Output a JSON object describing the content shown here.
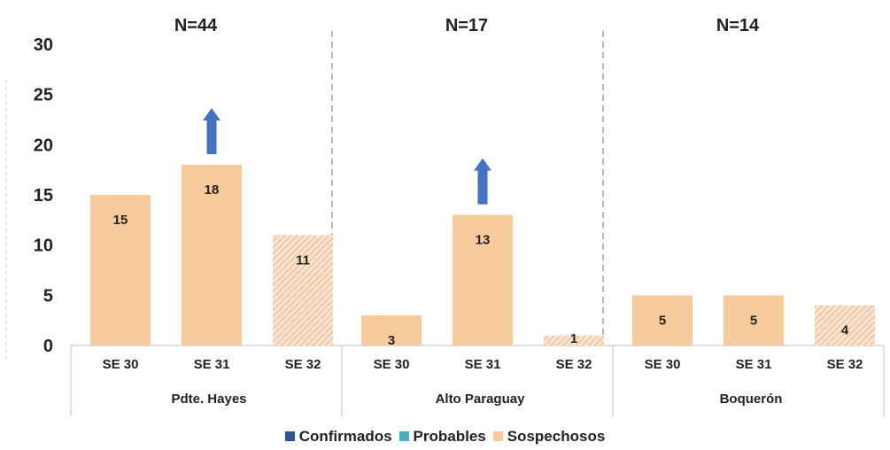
{
  "chart_data": {
    "type": "bar",
    "ylim": [
      0,
      30
    ],
    "yticks": [
      "0",
      "5",
      "10",
      "15",
      "20",
      "25",
      "30"
    ],
    "grid": false,
    "legend_position": "bottom",
    "groups": [
      {
        "name": "Pdte. Hayes",
        "n_label": "N=44",
        "arrow_on": "SE 31",
        "bars": [
          {
            "category": "SE 30",
            "value": 15,
            "label": "15",
            "hatched": false
          },
          {
            "category": "SE 31",
            "value": 18,
            "label": "18",
            "hatched": false
          },
          {
            "category": "SE 32",
            "value": 11,
            "label": "11",
            "hatched": true
          }
        ]
      },
      {
        "name": "Alto Paraguay",
        "n_label": "N=17",
        "arrow_on": "SE 31",
        "bars": [
          {
            "category": "SE 30",
            "value": 3,
            "label": "3",
            "hatched": false
          },
          {
            "category": "SE 31",
            "value": 13,
            "label": "13",
            "hatched": false
          },
          {
            "category": "SE 32",
            "value": 1,
            "label": "1",
            "hatched": true
          }
        ]
      },
      {
        "name": "Boquerón",
        "n_label": "N=14",
        "arrow_on": null,
        "bars": [
          {
            "category": "SE 30",
            "value": 5,
            "label": "5",
            "hatched": false
          },
          {
            "category": "SE 31",
            "value": 5,
            "label": "5",
            "hatched": false
          },
          {
            "category": "SE 32",
            "value": 4,
            "label": "4",
            "hatched": true
          }
        ]
      }
    ],
    "legend": [
      {
        "label": "Confirmados",
        "color": "#2f5597"
      },
      {
        "label": "Probables",
        "color": "#4bacc6"
      },
      {
        "label": "Sospechosos",
        "color": "#f8cb9c"
      }
    ],
    "colors": {
      "bar": "#f8cb9c",
      "hatch": "#e7b78a",
      "arrow": "#4472c4",
      "separator": "#a6a6a6",
      "axis_line": "#bfbfbf",
      "text": "#222222"
    }
  }
}
